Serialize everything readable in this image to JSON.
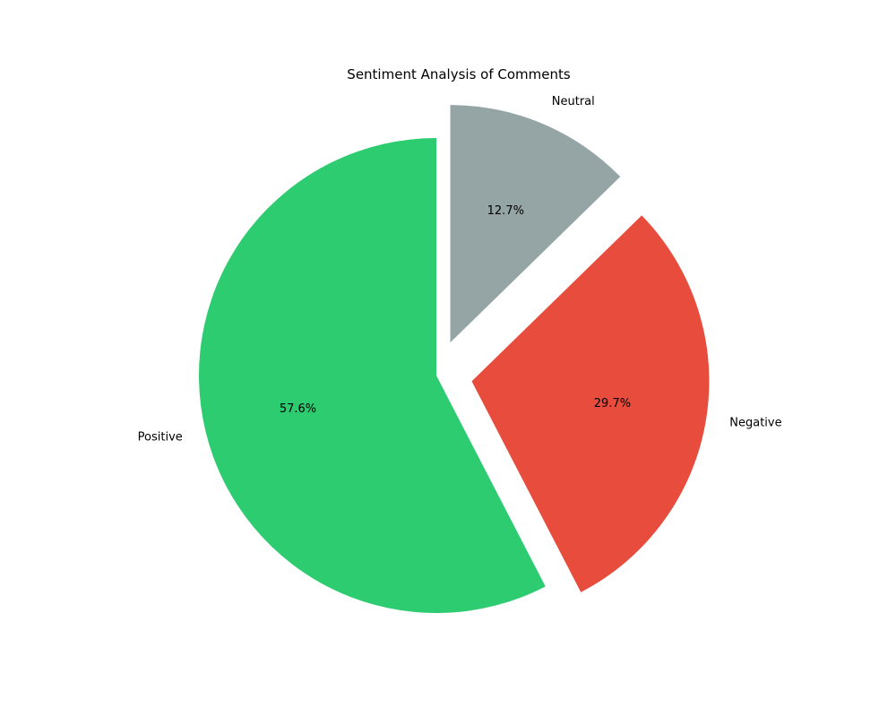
{
  "chart_data": {
    "type": "pie",
    "title": "Sentiment Analysis of Comments",
    "slices": [
      {
        "label": "Neutral",
        "value": 12.7,
        "pct_label": "12.7%",
        "color": "#95a5a6",
        "exploded": true
      },
      {
        "label": "Negative",
        "value": 29.7,
        "pct_label": "29.7%",
        "color": "#e74c3c",
        "exploded": true
      },
      {
        "label": "Positive",
        "value": 57.6,
        "pct_label": "57.6%",
        "color": "#2ecc71",
        "exploded": false
      }
    ],
    "start_angle_deg": 90,
    "direction": "clockwise",
    "legend": "none"
  }
}
